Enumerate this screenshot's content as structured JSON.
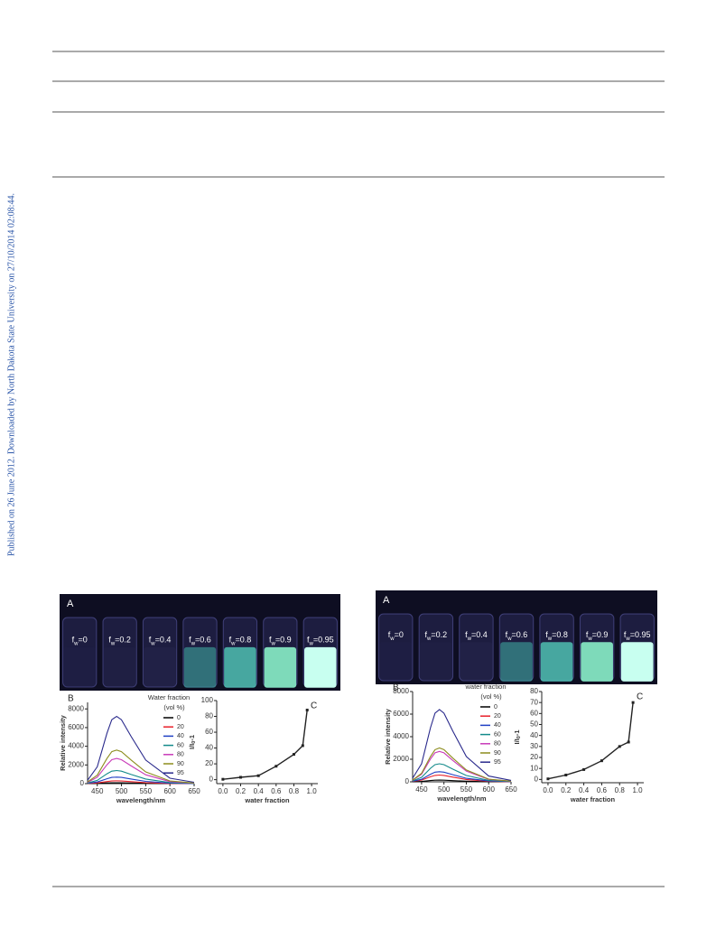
{
  "sidebar": "Published on 26 June 2012. Downloaded by North Dakota State University on 27/10/2014 02:08:44.",
  "photos": [
    {
      "label": "A",
      "vials": [
        {
          "f": "f",
          "sub": "w",
          "eq": "=0"
        },
        {
          "f": "f",
          "sub": "w",
          "eq": "=0.2"
        },
        {
          "f": "f",
          "sub": "w",
          "eq": "=0.4"
        },
        {
          "f": "f",
          "sub": "w",
          "eq": "=0.6"
        },
        {
          "f": "f",
          "sub": "w",
          "eq": "=0.8"
        },
        {
          "f": "f",
          "sub": "w",
          "eq": "=0.9"
        },
        {
          "f": "f",
          "sub": "w",
          "eq": "=0.95"
        }
      ]
    },
    {
      "label": "A",
      "vials": [
        {
          "f": "f",
          "sub": "w",
          "eq": "=0"
        },
        {
          "f": "f",
          "sub": "w",
          "eq": "=0.2"
        },
        {
          "f": "f",
          "sub": "w",
          "eq": "=0.4"
        },
        {
          "f": "f",
          "sub": "w",
          "eq": "=0.6"
        },
        {
          "f": "f",
          "sub": "w",
          "eq": "=0.8"
        },
        {
          "f": "f",
          "sub": "w",
          "eq": "=0.9"
        },
        {
          "f": "f",
          "sub": "w",
          "eq": "=0.95"
        }
      ]
    }
  ],
  "chart_data": [
    {
      "type": "line",
      "panel_label": "B",
      "xlabel": "wavelength/nm",
      "ylabel": {
        "main": "Relative intensity"
      },
      "xlim": [
        430,
        650
      ],
      "ylim": [
        0,
        8700
      ],
      "xticks": [
        450,
        500,
        550,
        600,
        650
      ],
      "yticks": [
        0,
        2000,
        4000,
        6000,
        8000
      ],
      "legend_title": [
        "Water fraction",
        "(vol %)"
      ],
      "x": [
        430,
        450,
        470,
        480,
        490,
        500,
        520,
        550,
        600,
        650
      ],
      "series": [
        {
          "name": "0",
          "color": "#000000",
          "values": [
            5,
            25,
            75,
            95,
            100,
            95,
            70,
            35,
            8,
            2
          ]
        },
        {
          "name": "20",
          "color": "#e8202a",
          "values": [
            15,
            75,
            225,
            285,
            300,
            285,
            210,
            105,
            24,
            6
          ]
        },
        {
          "name": "40",
          "color": "#1f3fc4",
          "values": [
            35,
            175,
            525,
            665,
            700,
            665,
            490,
            245,
            56,
            14
          ]
        },
        {
          "name": "60",
          "color": "#128a8a",
          "values": [
            70,
            350,
            1050,
            1330,
            1400,
            1330,
            980,
            490,
            112,
            28
          ]
        },
        {
          "name": "80",
          "color": "#c83ab8",
          "values": [
            135,
            675,
            2025,
            2565,
            2700,
            2565,
            1890,
            945,
            216,
            54
          ]
        },
        {
          "name": "90",
          "color": "#8c8c1c",
          "values": [
            180,
            900,
            2700,
            3420,
            3600,
            3420,
            2520,
            1260,
            288,
            72
          ]
        },
        {
          "name": "95",
          "color": "#2a2a8c",
          "values": [
            360,
            1800,
            5400,
            6840,
            7200,
            6840,
            5040,
            2520,
            576,
            144
          ]
        }
      ]
    },
    {
      "type": "line",
      "panel_label": "C",
      "marker": "square",
      "xlabel": "water fraction",
      "ylabel": {
        "main": "I/I",
        "sub": "0",
        "rest": "-1"
      },
      "xlim": [
        -0.07,
        1.07
      ],
      "ylim": [
        -5,
        100
      ],
      "xticks": [
        {
          "value": 0,
          "label": "0.0"
        },
        {
          "value": 0.2,
          "label": "0.2"
        },
        {
          "value": 0.4,
          "label": "0.4"
        },
        {
          "value": 0.6,
          "label": "0.6"
        },
        {
          "value": 0.8,
          "label": "0.8"
        },
        {
          "value": 1,
          "label": "1.0"
        }
      ],
      "yticks": [
        0,
        20,
        40,
        60,
        80,
        100
      ],
      "x": [
        0,
        0.2,
        0.4,
        0.6,
        0.8,
        0.9,
        0.95
      ],
      "series": [
        {
          "color": "#222222",
          "values": [
            0.5,
            3,
            5,
            17,
            32,
            43,
            88
          ]
        }
      ]
    },
    {
      "type": "line",
      "panel_label": "B",
      "xlabel": "wavelength/nm",
      "ylabel": {
        "main": "Relative intensity"
      },
      "xlim": [
        430,
        650
      ],
      "ylim": [
        0,
        8000
      ],
      "xticks": [
        450,
        500,
        550,
        600,
        650
      ],
      "yticks": [
        0,
        2000,
        4000,
        6000,
        8000
      ],
      "legend_title": [
        "water fraction",
        "(vol %)"
      ],
      "x": [
        430,
        450,
        470,
        480,
        490,
        500,
        520,
        550,
        600,
        650
      ],
      "series": [
        {
          "name": "0",
          "color": "#000000",
          "values": [
            8,
            38,
            113,
            143,
            150,
            143,
            105,
            53,
            12,
            3
          ]
        },
        {
          "name": "20",
          "color": "#e8202a",
          "values": [
            30,
            150,
            450,
            570,
            600,
            570,
            420,
            210,
            48,
            12
          ]
        },
        {
          "name": "40",
          "color": "#1f3fc4",
          "values": [
            45,
            225,
            675,
            855,
            900,
            855,
            630,
            315,
            72,
            18
          ]
        },
        {
          "name": "60",
          "color": "#128a8a",
          "values": [
            80,
            400,
            1200,
            1520,
            1600,
            1520,
            1120,
            560,
            128,
            32
          ]
        },
        {
          "name": "80",
          "color": "#c83ab8",
          "values": [
            135,
            675,
            2025,
            2565,
            2700,
            2565,
            1890,
            945,
            216,
            54
          ]
        },
        {
          "name": "90",
          "color": "#8c8c1c",
          "values": [
            150,
            750,
            2250,
            2850,
            3000,
            2850,
            2100,
            1050,
            240,
            60
          ]
        },
        {
          "name": "95",
          "color": "#2a2a8c",
          "values": [
            320,
            1600,
            4800,
            6080,
            6400,
            6080,
            4480,
            2240,
            512,
            128
          ]
        }
      ]
    },
    {
      "type": "line",
      "panel_label": "C",
      "marker": "square",
      "xlabel": "water fraction",
      "ylabel": {
        "main": "I/I",
        "sub": "0",
        "rest": "-1"
      },
      "xlim": [
        -0.07,
        1.07
      ],
      "ylim": [
        -3,
        80
      ],
      "xticks": [
        {
          "value": 0,
          "label": "0.0"
        },
        {
          "value": 0.2,
          "label": "0.2"
        },
        {
          "value": 0.4,
          "label": "0.4"
        },
        {
          "value": 0.6,
          "label": "0.6"
        },
        {
          "value": 0.8,
          "label": "0.8"
        },
        {
          "value": 1,
          "label": "1.0"
        }
      ],
      "yticks": [
        0,
        10,
        20,
        30,
        40,
        50,
        60,
        70,
        80
      ],
      "x": [
        0,
        0.2,
        0.4,
        0.6,
        0.8,
        0.9,
        0.95
      ],
      "series": [
        {
          "color": "#222222",
          "values": [
            0.5,
            4,
            9,
            17,
            30,
            34,
            70
          ]
        }
      ]
    }
  ]
}
